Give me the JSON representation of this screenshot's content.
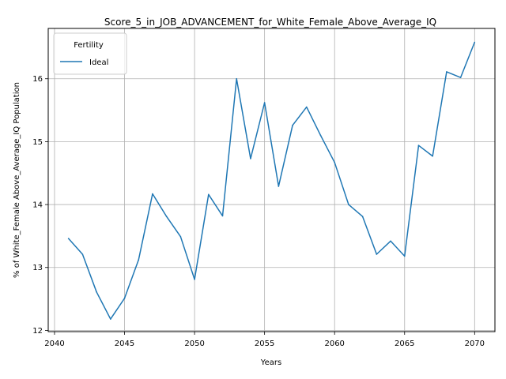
{
  "chart_data": {
    "type": "line",
    "title": "Score_5_in_JOB_ADVANCEMENT_for_White_Female_Above_Average_IQ",
    "xlabel": "Years",
    "ylabel": "% of White_Female Above_Average_IQ Population",
    "xlim": [
      2039.55,
      2071.45
    ],
    "ylim": [
      11.98,
      16.8
    ],
    "xticks": [
      2040,
      2045,
      2050,
      2055,
      2060,
      2065,
      2070
    ],
    "yticks": [
      12,
      13,
      14,
      15,
      16
    ],
    "grid": true,
    "legend": {
      "title": "Fertility",
      "placement": "top-left"
    },
    "x": [
      2041,
      2042,
      2043,
      2044,
      2045,
      2046,
      2047,
      2048,
      2049,
      2050,
      2051,
      2052,
      2053,
      2054,
      2055,
      2056,
      2057,
      2058,
      2059,
      2060,
      2061,
      2062,
      2063,
      2064,
      2065,
      2066,
      2067,
      2068,
      2069,
      2070
    ],
    "series": [
      {
        "name": "Ideal",
        "color": "#1f77b4",
        "values": [
          13.46,
          13.21,
          12.61,
          12.18,
          12.51,
          13.12,
          14.17,
          13.81,
          13.49,
          12.81,
          14.16,
          13.82,
          16.0,
          14.73,
          15.62,
          14.29,
          15.26,
          15.55,
          15.1,
          14.67,
          14.0,
          13.81,
          13.21,
          13.42,
          13.18,
          14.94,
          14.77,
          16.11,
          16.02,
          16.58
        ]
      }
    ]
  }
}
